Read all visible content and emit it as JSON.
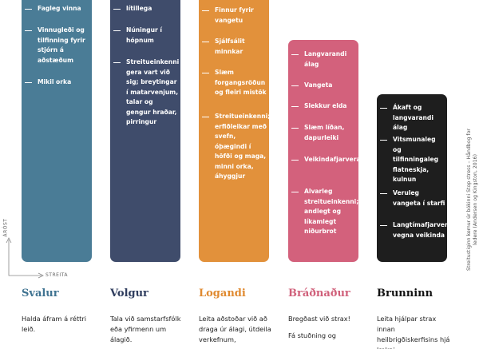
{
  "axis": {
    "y_label": "ÁRÓST",
    "x_label": "STREITA"
  },
  "columns": [
    {
      "heading": "Svalur",
      "items": [
        "Fagleg vinna",
        "Vinnugleði og tilfinning fyrir stjórn á aðstæðum",
        "Mikil orka"
      ],
      "advice": [
        "Halda áfram á réttri leið."
      ]
    },
    {
      "heading": "Volgur",
      "items": [
        "lítillega",
        "Núningur í hópnum",
        "Streitueinkenni gera vart við sig; breytingar í matarvenjum, talar og gengur hraðar, pirringur"
      ],
      "advice": [
        "Tala við samstarfsfólk eða yfirmenn um álagið."
      ]
    },
    {
      "heading": "Logandi",
      "items": [
        "Finnur fyrir vangetu",
        "Sjálfsálit minnkar",
        "Slæm forgangsröðun og fleiri mistök",
        "Streitueinkenni; erfiðleikar með svefn, óþægindi í höfði og maga, minni orka, áhyggjur"
      ],
      "advice": [
        "Leita aðstoðar við að draga úr álagi, útdeila verkefnum,"
      ]
    },
    {
      "heading": "Bráðnaður",
      "items": [
        "Langvarandi álag",
        "Vangeta",
        "Slekkur elda",
        "Slæm líðan, dapurleiki",
        "Veikindafjarvera",
        "Alvarleg streitueinkenni; andlegt og líkamlegt niðurbrot"
      ],
      "advice": [
        "Bregðast við strax!",
        "Fá stuðning og"
      ]
    },
    {
      "heading": "Brunninn",
      "items": [
        "Ákaft og langvarandi álag",
        "Vitsmunaleg og tilfinningaleg flatneskja, kulnun",
        "Veruleg vangeta í starfi",
        "Langtímafjarvera vegna veikinda"
      ],
      "advice": [
        "Leita hjálpar strax innan heilbrigðiskerfisins hjá lækni"
      ]
    }
  ],
  "source": "Streitustiginn kemur úr bókinni Stop stress – Håndbog for ledere (Andersen og Kingston, 2016)"
}
